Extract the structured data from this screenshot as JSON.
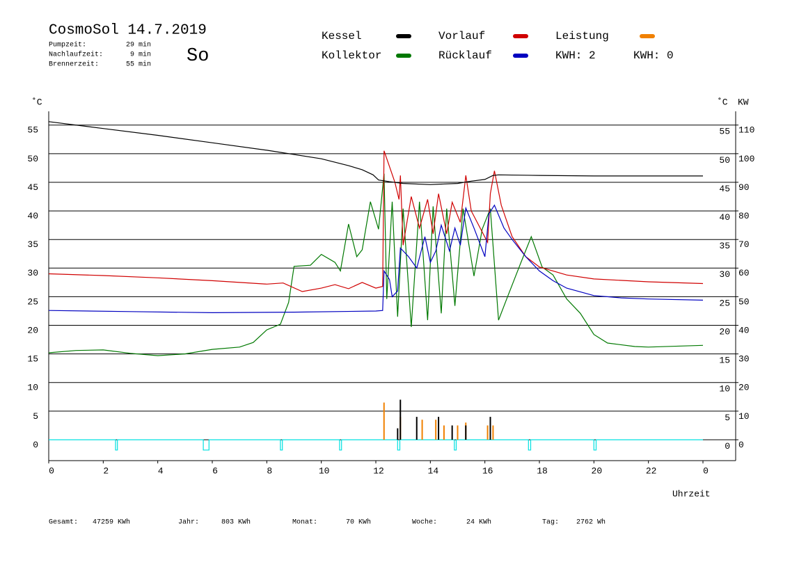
{
  "chart_data": {
    "type": "line",
    "title": "CosmoSol 14.7.2019",
    "day": "So",
    "stats": [
      {
        "label": "Pumpzeit:",
        "value": "29 min"
      },
      {
        "label": "Nachlaufzeit:",
        "value": "9 min"
      },
      {
        "label": "Brennerzeit:",
        "value": "55 min"
      }
    ],
    "y_unit": "˚C",
    "y2_unit": "KW",
    "x_label": "Uhrzeit",
    "xlim": [
      0,
      25.2
    ],
    "xticks": [
      0,
      2,
      4,
      6,
      8,
      10,
      12,
      14,
      16,
      18,
      20,
      22,
      {
        "value": 24,
        "label": "0"
      }
    ],
    "ylim": [
      -3.65,
      57.4
    ],
    "yticks": [
      0,
      5,
      10,
      15,
      20,
      25,
      30,
      35,
      40,
      45,
      50,
      55
    ],
    "y2lim": [
      -7.3,
      114.8
    ],
    "y2ticks": [
      0,
      10,
      20,
      30,
      40,
      50,
      60,
      70,
      80,
      90,
      100,
      110
    ],
    "grid": true,
    "series": [
      {
        "name": "Kessel",
        "color": "#000000",
        "x": [
          0,
          2,
          4,
          6,
          8,
          10,
          11,
          11.5,
          11.9,
          12.1,
          12.5,
          13,
          14,
          15,
          15.5,
          16,
          16.3,
          16.5,
          18,
          20,
          24
        ],
        "values": [
          55.6,
          54.4,
          53.2,
          51.9,
          50.6,
          49.1,
          47.9,
          47.2,
          46.3,
          45.4,
          45.1,
          44.8,
          44.6,
          44.8,
          45.2,
          45.5,
          46.2,
          46.3,
          46.2,
          46.1,
          46.1
        ]
      },
      {
        "name": "Kollektor",
        "color": "#007800",
        "x": [
          0,
          1,
          2,
          3,
          4,
          5,
          6,
          7,
          7.5,
          8,
          8.5,
          8.8,
          9,
          9.6,
          10,
          10.5,
          10.7,
          11,
          11.3,
          11.5,
          11.8,
          12.1,
          12.3,
          12.4,
          12.6,
          12.8,
          13,
          13.3,
          13.6,
          13.9,
          14.1,
          14.4,
          14.6,
          14.9,
          15.2,
          15.6,
          15.9,
          16.2,
          16.5,
          16.8,
          17.3,
          17.7,
          18.1,
          18.5,
          19,
          19.5,
          20,
          20.5,
          21.5,
          22,
          24
        ],
        "values": [
          15.2,
          15.6,
          15.7,
          15.1,
          14.7,
          15.0,
          15.8,
          16.2,
          17,
          19.2,
          20.2,
          24,
          30.3,
          30.5,
          32.4,
          31,
          29.5,
          37.7,
          32,
          33.2,
          41.6,
          36.8,
          46.5,
          24.6,
          41.6,
          21.5,
          40.4,
          19.7,
          41.6,
          20.9,
          40.8,
          22.1,
          40.4,
          23.4,
          40.4,
          28.6,
          36.8,
          40.4,
          20.9,
          24.6,
          30.7,
          35.5,
          30.2,
          28.8,
          24.6,
          22.1,
          18.4,
          16.9,
          16.3,
          16.2,
          16.5
        ]
      },
      {
        "name": "Vorlauf",
        "color": "#d00000",
        "x": [
          0,
          2,
          4,
          6,
          8,
          8.6,
          9.3,
          10,
          10.5,
          11,
          11.5,
          12,
          12.25,
          12.3,
          12.7,
          12.85,
          12.9,
          13,
          13.3,
          13.6,
          13.9,
          14.1,
          14.3,
          14.6,
          14.8,
          15.1,
          15.3,
          15.5,
          16.1,
          16.2,
          16.35,
          16.6,
          17,
          17.5,
          18,
          19,
          20,
          22,
          24
        ],
        "values": [
          29,
          28.7,
          28.3,
          27.8,
          27.2,
          27.4,
          25.9,
          26.5,
          27.1,
          26.4,
          27.5,
          26.5,
          26.8,
          50.5,
          45,
          42,
          46.2,
          34,
          42.5,
          37,
          42,
          36,
          43,
          36,
          41.5,
          38,
          46.2,
          40,
          34.5,
          43,
          47,
          41,
          35.5,
          32,
          30.2,
          28.8,
          28.1,
          27.6,
          27.3
        ]
      },
      {
        "name": "Rücklauf",
        "color": "#0000c0",
        "x": [
          0,
          3,
          6,
          9,
          12,
          12.25,
          12.3,
          12.5,
          12.6,
          12.8,
          12.9,
          13.2,
          13.5,
          13.8,
          14,
          14.2,
          14.4,
          14.7,
          14.9,
          15.1,
          15.3,
          15.6,
          16,
          16.15,
          16.35,
          16.7,
          17,
          17.5,
          18,
          18.5,
          19,
          20,
          21,
          22,
          24
        ],
        "values": [
          22.6,
          22.4,
          22.2,
          22.3,
          22.5,
          22.6,
          29.5,
          28,
          25,
          26,
          33.5,
          32,
          30,
          35.5,
          31,
          33,
          37.5,
          33,
          37,
          34,
          40.5,
          37,
          32,
          39.5,
          41,
          37,
          35,
          32,
          29.5,
          27.8,
          26.5,
          25.2,
          24.8,
          24.6,
          24.4
        ]
      },
      {
        "name": "Leistung",
        "color": "#f08000",
        "type": "bar",
        "axis": "y2",
        "x": [
          12.3,
          12.9,
          13.7,
          14.2,
          14.5,
          15.0,
          15.3,
          16.1,
          16.3
        ],
        "values": [
          13,
          8,
          7,
          7,
          5,
          5,
          6,
          5,
          5
        ]
      },
      {
        "color": "#000000",
        "type": "bar",
        "axis": "y2",
        "x": [
          12.8,
          12.9,
          13.5,
          14.3,
          14.8,
          15.3,
          16.2
        ],
        "values": [
          4,
          14,
          8,
          8,
          5,
          5,
          8
        ]
      },
      {
        "color": "#00e0e0",
        "x": [
          0,
          2.45,
          2.45,
          2.52,
          2.52,
          5.67,
          5.67,
          5.88,
          5.88,
          8.5,
          8.5,
          8.57,
          8.57,
          10.67,
          10.67,
          10.74,
          10.74,
          12.8,
          12.8,
          12.88,
          12.88,
          14.88,
          14.88,
          14.95,
          14.95,
          17.6,
          17.6,
          17.68,
          17.68,
          20.0,
          20.0,
          20.08,
          20.08,
          24
        ],
        "values": [
          0,
          0,
          -1.8,
          -1.8,
          0,
          0,
          -1.8,
          -1.8,
          0,
          0,
          -1.8,
          -1.8,
          0,
          0,
          -1.8,
          -1.8,
          0,
          0,
          -1.8,
          -1.8,
          0,
          0,
          -1.8,
          -1.8,
          0,
          0,
          -1.8,
          -1.8,
          0,
          0,
          -1.8,
          -1.8,
          0,
          0
        ]
      }
    ],
    "kwh": [
      {
        "label": "KWH: 2",
        "color": "#e09020"
      },
      {
        "label": "KWH: 0",
        "color": "#800080"
      }
    ],
    "totals": [
      {
        "label": "Gesamt:",
        "value": "47259 KWh"
      },
      {
        "label": "Jahr:",
        "value": "803 KWh"
      },
      {
        "label": "Monat:",
        "value": "70 KWh"
      },
      {
        "label": "Woche:",
        "value": "24 KWh"
      },
      {
        "label": "Tag:",
        "value": "2762 Wh"
      }
    ]
  }
}
